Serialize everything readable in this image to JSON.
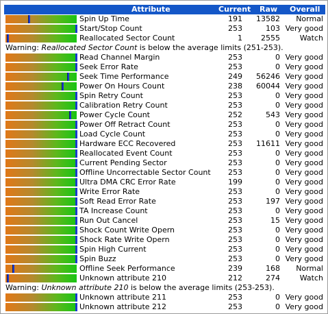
{
  "header": {
    "attribute": "Attribute",
    "current": "Current",
    "raw": "Raw",
    "overall": "Overall"
  },
  "rows": [
    {
      "type": "attr",
      "name": "Spin Up Time",
      "current": "191",
      "raw": "13582",
      "overall": "Normal",
      "level": 0.33
    },
    {
      "type": "attr",
      "name": "Start/Stop Count",
      "current": "253",
      "raw": "103",
      "overall": "Very good",
      "level": 1.0
    },
    {
      "type": "attr",
      "name": "Reallocated Sector Count",
      "current": "1",
      "raw": "2555",
      "overall": "Watch",
      "level": 0.02
    },
    {
      "type": "warn",
      "prefix": "Warning: ",
      "attr": "Reallocated Sector Count",
      "suffix": " is below the average limits (251-253)."
    },
    {
      "type": "attr",
      "name": "Read Channel Margin",
      "current": "253",
      "raw": "0",
      "overall": "Very good",
      "level": 1.0
    },
    {
      "type": "attr",
      "name": "Seek Error Rate",
      "current": "253",
      "raw": "0",
      "overall": "Very good",
      "level": 1.0
    },
    {
      "type": "attr",
      "name": "Seek Time Performance",
      "current": "249",
      "raw": "56246",
      "overall": "Very good",
      "level": 0.9
    },
    {
      "type": "attr",
      "name": "Power On Hours Count",
      "current": "238",
      "raw": "60044",
      "overall": "Very good",
      "level": 0.82
    },
    {
      "type": "attr",
      "name": "Spin Retry Count",
      "current": "253",
      "raw": "0",
      "overall": "Very good",
      "level": 1.0
    },
    {
      "type": "attr",
      "name": "Calibration Retry Count",
      "current": "253",
      "raw": "0",
      "overall": "Very good",
      "level": 1.0
    },
    {
      "type": "attr",
      "name": "Power Cycle Count",
      "current": "252",
      "raw": "543",
      "overall": "Very good",
      "level": 0.93
    },
    {
      "type": "attr",
      "name": "Power Off Retract Count",
      "current": "253",
      "raw": "0",
      "overall": "Very good",
      "level": 1.0
    },
    {
      "type": "attr",
      "name": "Load Cycle Count",
      "current": "253",
      "raw": "0",
      "overall": "Very good",
      "level": 1.0
    },
    {
      "type": "attr",
      "name": "Hardware ECC Recovered",
      "current": "253",
      "raw": "11611",
      "overall": "Very good",
      "level": 1.0
    },
    {
      "type": "attr",
      "name": "Reallocated Event Count",
      "current": "253",
      "raw": "0",
      "overall": "Very good",
      "level": 1.0
    },
    {
      "type": "attr",
      "name": "Current Pending Sector",
      "current": "253",
      "raw": "0",
      "overall": "Very good",
      "level": 1.0
    },
    {
      "type": "attr",
      "name": "Offline Uncorrectable Sector Count",
      "current": "253",
      "raw": "0",
      "overall": "Very good",
      "level": 1.0
    },
    {
      "type": "attr",
      "name": "Ultra DMA CRC Error Rate",
      "current": "199",
      "raw": "0",
      "overall": "Very good",
      "level": 1.0
    },
    {
      "type": "attr",
      "name": "Write Error Rate",
      "current": "253",
      "raw": "0",
      "overall": "Very good",
      "level": 1.0
    },
    {
      "type": "attr",
      "name": "Soft Read Error Rate",
      "current": "253",
      "raw": "197",
      "overall": "Very good",
      "level": 1.0
    },
    {
      "type": "attr",
      "name": "TA Increase Count",
      "current": "253",
      "raw": "0",
      "overall": "Very good",
      "level": 1.0
    },
    {
      "type": "attr",
      "name": "Run Out Cancel",
      "current": "253",
      "raw": "15",
      "overall": "Very good",
      "level": 1.0
    },
    {
      "type": "attr",
      "name": "Shock Count Write Opern",
      "current": "253",
      "raw": "0",
      "overall": "Very good",
      "level": 1.0
    },
    {
      "type": "attr",
      "name": "Shock Rate Write Opern",
      "current": "253",
      "raw": "0",
      "overall": "Very good",
      "level": 1.0
    },
    {
      "type": "attr",
      "name": "Spin High Current",
      "current": "253",
      "raw": "0",
      "overall": "Very good",
      "level": 1.0
    },
    {
      "type": "attr",
      "name": "Spin Buzz",
      "current": "253",
      "raw": "0",
      "overall": "Very good",
      "level": 1.0
    },
    {
      "type": "attr",
      "name": "Offline Seek Performance",
      "current": "239",
      "raw": "168",
      "overall": "Normal",
      "level": 0.1
    },
    {
      "type": "attr",
      "name": "Unknown attribute 210",
      "current": "212",
      "raw": "274",
      "overall": "Watch",
      "level": 0.02
    },
    {
      "type": "warn",
      "prefix": "Warning: ",
      "attr": "Unknown attribute 210",
      "suffix": " is below the average limits (253-253)."
    },
    {
      "type": "attr",
      "name": "Unknown attribute 211",
      "current": "253",
      "raw": "0",
      "overall": "Very good",
      "level": 1.0
    },
    {
      "type": "attr",
      "name": "Unknown attribute 212",
      "current": "253",
      "raw": "0",
      "overall": "Very good",
      "level": 1.0
    }
  ],
  "colors": {
    "header_bg": "#1457c8",
    "bar_low": "#e07818",
    "bar_high": "#19c514",
    "marker": "#1a3ad0"
  }
}
